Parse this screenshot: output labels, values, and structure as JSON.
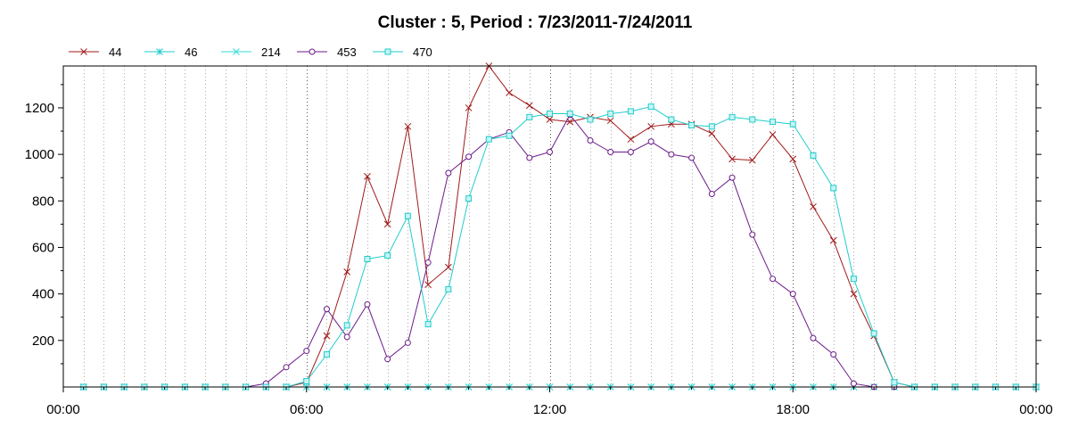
{
  "chart_data": {
    "type": "line",
    "title": "Cluster : 5, Period : 7/23/2011-7/24/2011",
    "xlabel": "",
    "ylabel": "",
    "x_unit": "hours",
    "xlim": [
      0,
      24
    ],
    "ylim": [
      0,
      1380
    ],
    "x_ticks": [
      {
        "value": 0,
        "label": "00:00"
      },
      {
        "value": 6,
        "label": "06:00"
      },
      {
        "value": 12,
        "label": "12:00"
      },
      {
        "value": 18,
        "label": "18:00"
      },
      {
        "value": 24,
        "label": "00:00"
      }
    ],
    "y_ticks": [
      {
        "value": 200,
        "label": "200"
      },
      {
        "value": 400,
        "label": "400"
      },
      {
        "value": 600,
        "label": "600"
      },
      {
        "value": 800,
        "label": "800"
      },
      {
        "value": 1000,
        "label": "1000"
      },
      {
        "value": 1200,
        "label": "1200"
      }
    ],
    "grid": "vertical dotted every 30 minutes",
    "legend_position": "top-left",
    "x": [
      0.5,
      1.0,
      1.5,
      2.0,
      2.5,
      3.0,
      3.5,
      4.0,
      4.5,
      5.0,
      5.5,
      6.0,
      6.5,
      7.0,
      7.5,
      8.0,
      8.5,
      9.0,
      9.5,
      10.0,
      10.5,
      11.0,
      11.5,
      12.0,
      12.5,
      13.0,
      13.5,
      14.0,
      14.5,
      15.0,
      15.5,
      16.0,
      16.5,
      17.0,
      17.5,
      18.0,
      18.5,
      19.0,
      19.5,
      20.0,
      20.5,
      21.0,
      21.5,
      22.0,
      22.5,
      23.0,
      23.5,
      24.0
    ],
    "series": [
      {
        "name": "44",
        "color": "#a01a1a",
        "marker": "x",
        "values": [
          0,
          0,
          0,
          0,
          0,
          0,
          0,
          0,
          0,
          0,
          0,
          20,
          220,
          495,
          905,
          700,
          1120,
          440,
          515,
          1200,
          1380,
          1265,
          1210,
          1150,
          1140,
          1160,
          1145,
          1065,
          1120,
          1130,
          1130,
          1090,
          980,
          975,
          1085,
          980,
          775,
          630,
          400,
          220,
          20,
          0,
          0,
          0,
          0,
          0,
          0,
          0
        ]
      },
      {
        "name": "46",
        "color": "#22cccc",
        "marker": "asterisk",
        "values": [
          0,
          0,
          0,
          0,
          0,
          0,
          0,
          0,
          0,
          0,
          0,
          0,
          0,
          0,
          0,
          0,
          0,
          0,
          0,
          0,
          0,
          0,
          0,
          0,
          0,
          0,
          0,
          0,
          0,
          0,
          0,
          0,
          0,
          0,
          0,
          0,
          0,
          0,
          0,
          0,
          0,
          0,
          0,
          0,
          0,
          0,
          0,
          0
        ]
      },
      {
        "name": "214",
        "color": "#33dddd",
        "marker": "x",
        "values": [
          0,
          0,
          0,
          0,
          0,
          0,
          0,
          0,
          0,
          0,
          0,
          0,
          0,
          0,
          0,
          0,
          0,
          0,
          0,
          0,
          0,
          0,
          0,
          0,
          0,
          0,
          0,
          0,
          0,
          0,
          0,
          0,
          0,
          0,
          0,
          0,
          0,
          0,
          0,
          0,
          0,
          0,
          0,
          0,
          0,
          0,
          0,
          0
        ]
      },
      {
        "name": "453",
        "color": "#6a1a8a",
        "marker": "circle",
        "values": [
          0,
          0,
          0,
          0,
          0,
          0,
          0,
          0,
          0,
          15,
          85,
          155,
          335,
          215,
          355,
          120,
          190,
          535,
          920,
          990,
          1065,
          1095,
          985,
          1010,
          1170,
          1060,
          1010,
          1010,
          1055,
          1000,
          985,
          830,
          900,
          655,
          465,
          400,
          210,
          140,
          15,
          0,
          0,
          0,
          0,
          0,
          0,
          0,
          0,
          0
        ]
      },
      {
        "name": "470",
        "color": "#22cccc",
        "marker": "square",
        "values": [
          0,
          0,
          0,
          0,
          0,
          0,
          0,
          0,
          0,
          0,
          0,
          25,
          140,
          265,
          550,
          565,
          735,
          270,
          420,
          810,
          1065,
          1080,
          1160,
          1175,
          1175,
          1150,
          1175,
          1185,
          1205,
          1150,
          1125,
          1120,
          1160,
          1150,
          1140,
          1130,
          995,
          855,
          465,
          230,
          20,
          0,
          0,
          0,
          0,
          0,
          0,
          0
        ]
      }
    ]
  }
}
